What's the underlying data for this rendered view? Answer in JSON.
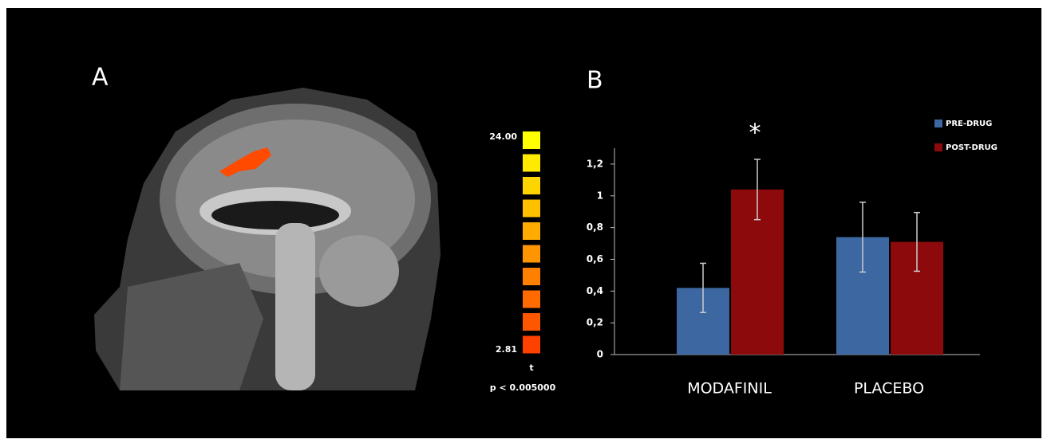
{
  "panel_a": {
    "label": "A",
    "colorbar": {
      "max_label": "24.00",
      "min_label": "2.81",
      "unit": "t",
      "threshold": "p < 0.005000"
    }
  },
  "chart_data": {
    "type": "bar",
    "panel_label": "B",
    "categories": [
      "MODAFINIL",
      "PLACEBO"
    ],
    "series": [
      {
        "name": "PRE-DRUG",
        "color": "#3d67a1",
        "values": [
          0.42,
          0.74
        ],
        "errors": [
          0.155,
          0.22
        ]
      },
      {
        "name": "POST-DRUG",
        "color": "#8c0a0c",
        "values": [
          1.04,
          0.71
        ],
        "errors": [
          0.19,
          0.185
        ]
      }
    ],
    "ylim": [
      0,
      1.3
    ],
    "yticks": [
      0,
      {
        "value": 0.2,
        "label": "0,2"
      },
      {
        "value": 0.4,
        "label": "0,4"
      },
      {
        "value": 0.6,
        "label": "0,6"
      },
      {
        "value": 0.8,
        "label": "0,8"
      },
      1,
      {
        "value": 1.2,
        "label": "1,2"
      }
    ],
    "annotation": "*",
    "legend": "top-right"
  }
}
